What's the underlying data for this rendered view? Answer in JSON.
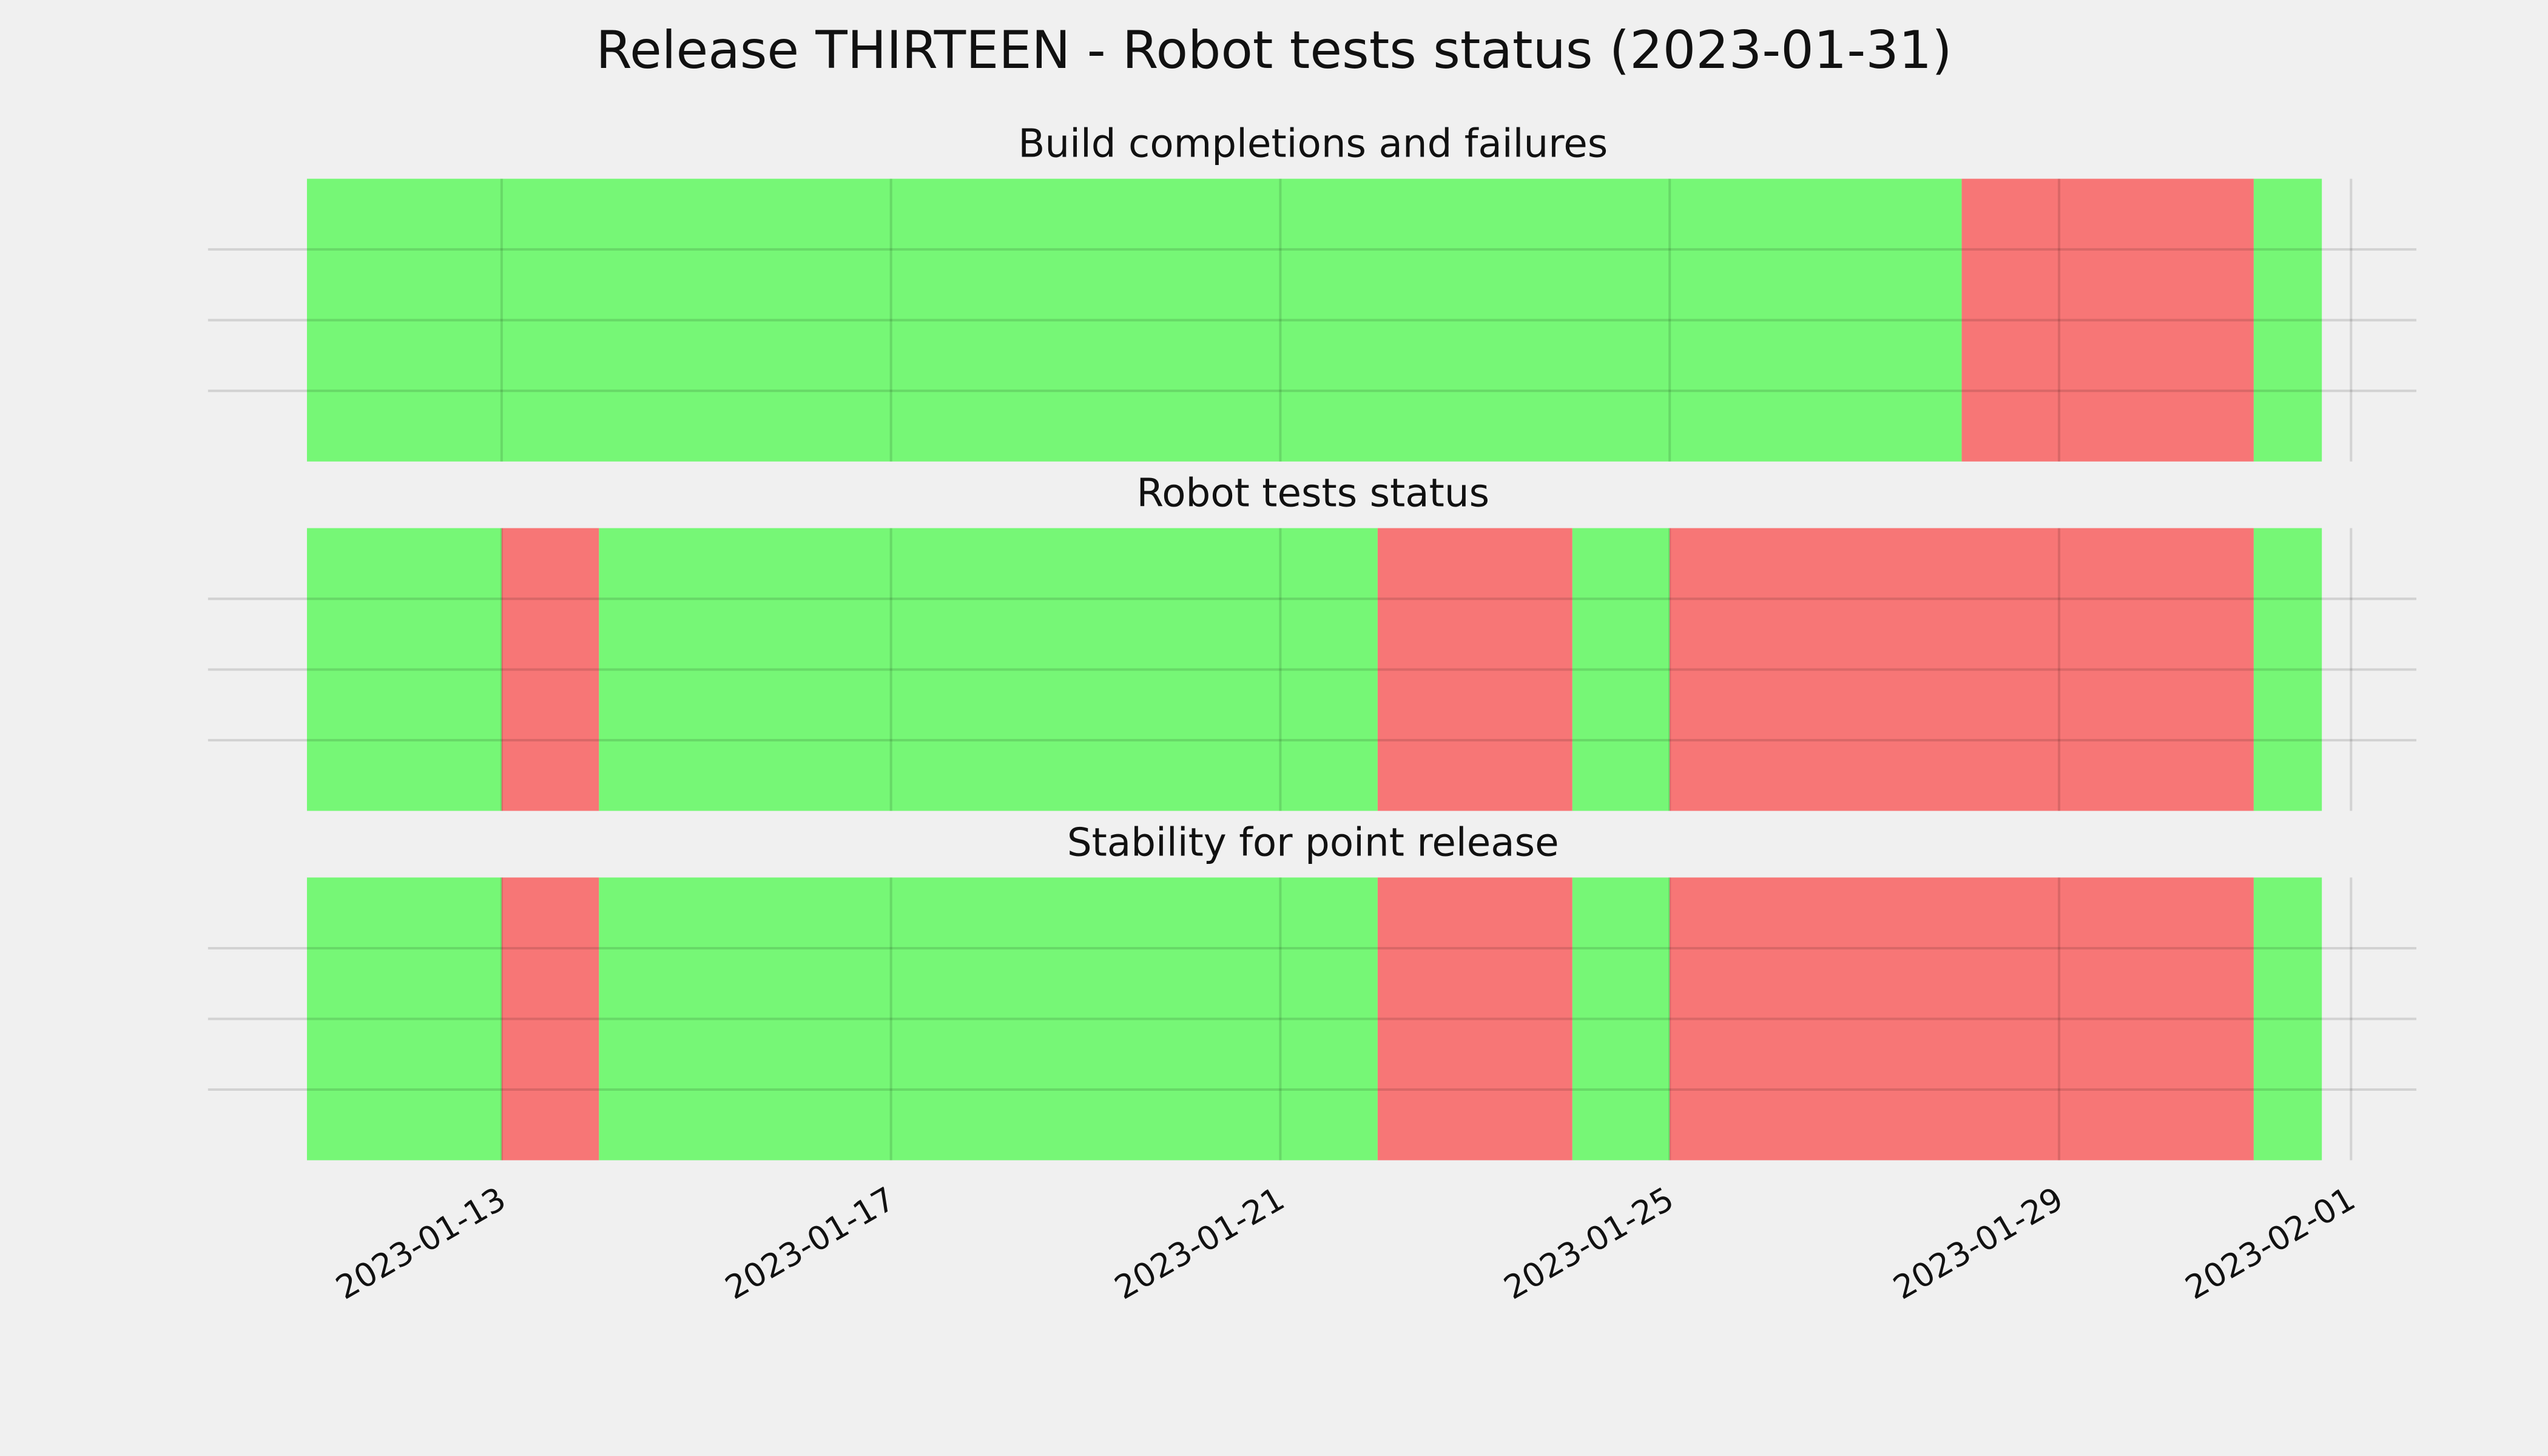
{
  "title": "Release THIRTEEN - Robot tests status (2023-01-31)",
  "chart_data": [
    {
      "type": "timeline",
      "title": "Build completions and failures",
      "xlim": [
        "2023-01-10",
        "2023-02-02"
      ],
      "xticks": [
        "2023-01-13",
        "2023-01-17",
        "2023-01-21",
        "2023-01-25",
        "2023-01-29",
        "2023-02-01"
      ],
      "ylim": [
        0,
        1
      ],
      "yticks": [
        0.25,
        0.5,
        0.75
      ],
      "grid": true,
      "segments": [
        {
          "start": "2023-01-11",
          "days": 17,
          "color": "#76f776"
        },
        {
          "start": "2023-01-28",
          "days": 3,
          "color": "#f77676"
        },
        {
          "start": "2023-01-31",
          "days": 0.7,
          "color": "#76f776"
        }
      ]
    },
    {
      "type": "timeline",
      "title": "Robot tests status",
      "xlim": [
        "2023-01-10",
        "2023-02-02"
      ],
      "xticks": [
        "2023-01-13",
        "2023-01-17",
        "2023-01-21",
        "2023-01-25",
        "2023-01-29",
        "2023-02-01"
      ],
      "ylim": [
        0,
        1
      ],
      "yticks": [
        0.25,
        0.5,
        0.75
      ],
      "grid": true,
      "segments": [
        {
          "start": "2023-01-11",
          "days": 2,
          "color": "#76f776"
        },
        {
          "start": "2023-01-13",
          "days": 1,
          "color": "#f77676"
        },
        {
          "start": "2023-01-14",
          "days": 8,
          "color": "#76f776"
        },
        {
          "start": "2023-01-22",
          "days": 2,
          "color": "#f77676"
        },
        {
          "start": "2023-01-24",
          "days": 1,
          "color": "#76f776"
        },
        {
          "start": "2023-01-25",
          "days": 6,
          "color": "#f77676"
        },
        {
          "start": "2023-01-31",
          "days": 0.7,
          "color": "#76f776"
        }
      ]
    },
    {
      "type": "timeline",
      "title": "Stability for point release",
      "xlim": [
        "2023-01-10",
        "2023-02-02"
      ],
      "xticks": [
        "2023-01-13",
        "2023-01-17",
        "2023-01-21",
        "2023-01-25",
        "2023-01-29",
        "2023-02-01"
      ],
      "ylim": [
        0,
        1
      ],
      "yticks": [
        0.25,
        0.5,
        0.75
      ],
      "grid": true,
      "segments": [
        {
          "start": "2023-01-11",
          "days": 2,
          "color": "#76f776"
        },
        {
          "start": "2023-01-13",
          "days": 1,
          "color": "#f77676"
        },
        {
          "start": "2023-01-14",
          "days": 8,
          "color": "#76f776"
        },
        {
          "start": "2023-01-22",
          "days": 2,
          "color": "#f77676"
        },
        {
          "start": "2023-01-24",
          "days": 1,
          "color": "#76f776"
        },
        {
          "start": "2023-01-25",
          "days": 6,
          "color": "#f77676"
        },
        {
          "start": "2023-01-31",
          "days": 0.7,
          "color": "#76f776"
        }
      ]
    }
  ]
}
